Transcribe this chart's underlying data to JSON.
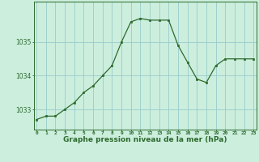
{
  "x": [
    0,
    1,
    2,
    3,
    4,
    5,
    6,
    7,
    8,
    9,
    10,
    11,
    12,
    13,
    14,
    15,
    16,
    17,
    18,
    19,
    20,
    21,
    22,
    23
  ],
  "y": [
    1032.7,
    1032.8,
    1032.8,
    1033.0,
    1033.2,
    1033.5,
    1033.7,
    1034.0,
    1034.3,
    1035.0,
    1035.6,
    1035.7,
    1035.65,
    1035.65,
    1035.65,
    1034.9,
    1034.4,
    1033.9,
    1033.8,
    1034.3,
    1034.5,
    1034.5,
    1034.5,
    1034.5
  ],
  "line_color": "#2d6a2d",
  "marker_color": "#2d6a2d",
  "bg_color": "#cceedd",
  "grid_color": "#99cccc",
  "axis_color": "#2d6a2d",
  "xlabel": "Graphe pression niveau de la mer (hPa)",
  "yticks": [
    1033,
    1034,
    1035
  ],
  "xlim": [
    -0.3,
    23.3
  ],
  "ylim": [
    1032.4,
    1036.2
  ]
}
